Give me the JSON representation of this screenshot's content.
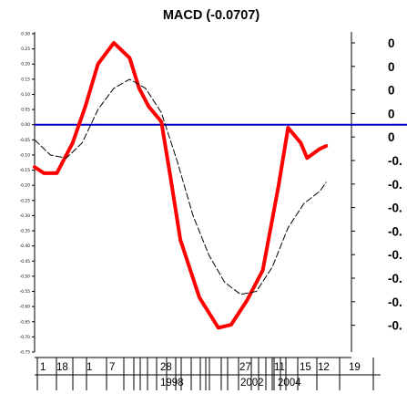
{
  "chart_data": {
    "type": "line",
    "title": "MACD (-0.0707)",
    "ylim": [
      -0.75,
      0.3
    ],
    "y_ticks": [
      "0.30",
      "0.25",
      "0.20",
      "0.15",
      "0.10",
      "0.05",
      "0.00",
      "-0.05",
      "-0.10",
      "-0.15",
      "-0.20",
      "-0.25",
      "-0.30",
      "-0.35",
      "-0.40",
      "-0.45",
      "-0.50",
      "-0.55",
      "-0.60",
      "-0.65",
      "-0.70",
      "-0.75"
    ],
    "right_axis_labels": [
      "0",
      "0",
      "0",
      "0",
      "0",
      "-0.",
      "-0.",
      "-0.",
      "-0.",
      "-0.",
      "-0.",
      "-0.",
      "-0."
    ],
    "x_tick_labels_row1": [
      "1",
      "18",
      "1",
      "7",
      "28",
      "27",
      "11",
      "15",
      "12",
      "19"
    ],
    "x_tick_labels_row2": [
      "1998",
      "2002",
      "2004"
    ],
    "zero_line_color": "#0000cc",
    "series": [
      {
        "style": "solid-red-thick",
        "color": "#ff0000",
        "points": [
          [
            0.0,
            -0.14
          ],
          [
            0.03,
            -0.16
          ],
          [
            0.07,
            -0.16
          ],
          [
            0.12,
            -0.06
          ],
          [
            0.16,
            0.06
          ],
          [
            0.2,
            0.2
          ],
          [
            0.25,
            0.27
          ],
          [
            0.3,
            0.22
          ],
          [
            0.33,
            0.12
          ],
          [
            0.36,
            0.06
          ],
          [
            0.4,
            0.01
          ],
          [
            0.43,
            -0.18
          ],
          [
            0.46,
            -0.38
          ],
          [
            0.52,
            -0.57
          ],
          [
            0.58,
            -0.67
          ],
          [
            0.62,
            -0.66
          ],
          [
            0.67,
            -0.58
          ],
          [
            0.72,
            -0.48
          ],
          [
            0.77,
            -0.2
          ],
          [
            0.8,
            -0.01
          ],
          [
            0.84,
            -0.06
          ],
          [
            0.86,
            -0.11
          ],
          [
            0.9,
            -0.08
          ],
          [
            0.92,
            -0.07
          ]
        ]
      },
      {
        "style": "dashed-black",
        "color": "#000000",
        "points": [
          [
            0.0,
            -0.05
          ],
          [
            0.05,
            -0.1
          ],
          [
            0.1,
            -0.11
          ],
          [
            0.15,
            -0.06
          ],
          [
            0.2,
            0.05
          ],
          [
            0.25,
            0.12
          ],
          [
            0.3,
            0.15
          ],
          [
            0.35,
            0.12
          ],
          [
            0.4,
            0.04
          ],
          [
            0.45,
            -0.12
          ],
          [
            0.5,
            -0.3
          ],
          [
            0.55,
            -0.43
          ],
          [
            0.6,
            -0.52
          ],
          [
            0.65,
            -0.56
          ],
          [
            0.7,
            -0.55
          ],
          [
            0.75,
            -0.47
          ],
          [
            0.8,
            -0.34
          ],
          [
            0.85,
            -0.26
          ],
          [
            0.9,
            -0.22
          ],
          [
            0.92,
            -0.19
          ]
        ]
      }
    ]
  }
}
